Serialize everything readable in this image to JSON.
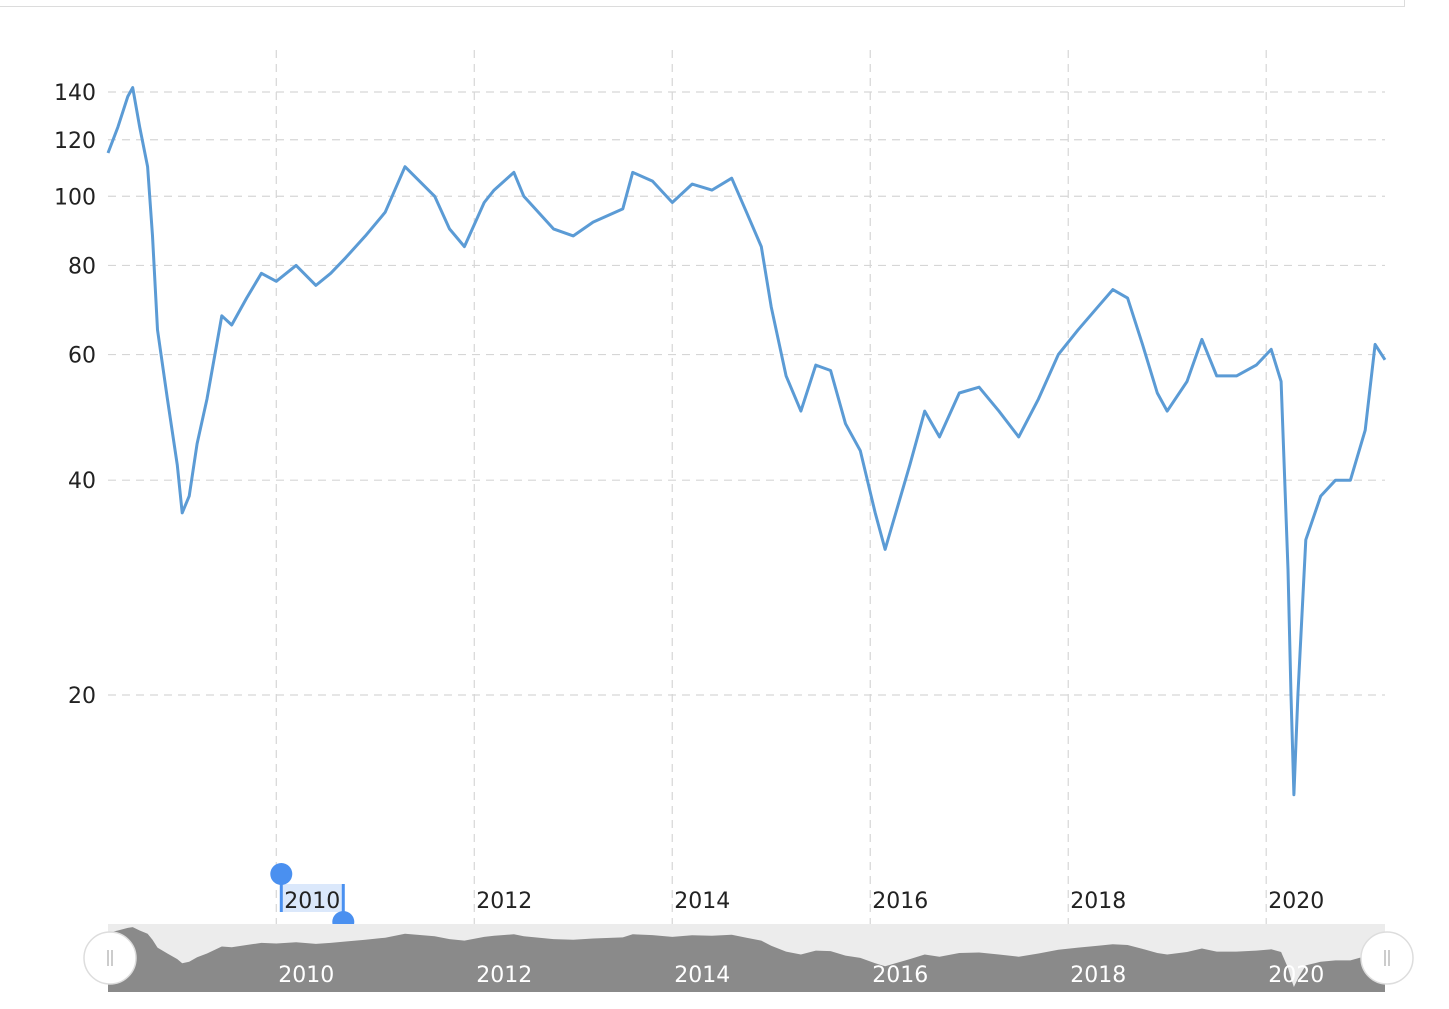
{
  "chart_data": {
    "type": "line",
    "title": "",
    "xlabel": "",
    "ylabel": "",
    "y_scale": "log",
    "ylim": [
      14,
      150
    ],
    "xlim": [
      2008.3,
      2021.2
    ],
    "y_ticks": [
      20,
      40,
      60,
      80,
      100,
      120,
      140
    ],
    "x_ticks": [
      "2010",
      "2012",
      "2014",
      "2016",
      "2018",
      "2020"
    ],
    "grid": true,
    "legend": "none",
    "line_color": "#5b9bd5",
    "selection_label": "2010",
    "series": [
      {
        "name": "",
        "x": [
          2008.3,
          2008.4,
          2008.5,
          2008.55,
          2008.62,
          2008.7,
          2008.75,
          2008.8,
          2008.9,
          2009.0,
          2009.05,
          2009.12,
          2009.2,
          2009.3,
          2009.45,
          2009.55,
          2009.7,
          2009.85,
          2010.0,
          2010.2,
          2010.4,
          2010.55,
          2010.7,
          2010.9,
          2011.1,
          2011.3,
          2011.6,
          2011.75,
          2011.9,
          2012.1,
          2012.2,
          2012.4,
          2012.5,
          2012.8,
          2013.0,
          2013.2,
          2013.5,
          2013.6,
          2013.8,
          2014.0,
          2014.2,
          2014.4,
          2014.6,
          2014.75,
          2014.9,
          2015.0,
          2015.15,
          2015.3,
          2015.45,
          2015.6,
          2015.75,
          2015.9,
          2016.05,
          2016.15,
          2016.4,
          2016.55,
          2016.7,
          2016.9,
          2017.1,
          2017.3,
          2017.5,
          2017.7,
          2017.9,
          2018.1,
          2018.3,
          2018.45,
          2018.6,
          2018.75,
          2018.9,
          2019.0,
          2019.2,
          2019.35,
          2019.5,
          2019.7,
          2019.9,
          2020.05,
          2020.15,
          2020.22,
          2020.25,
          2020.28,
          2020.32,
          2020.4,
          2020.55,
          2020.7,
          2020.85,
          2021.0,
          2021.1,
          2021.2
        ],
        "values": [
          115,
          125,
          138,
          142,
          125,
          110,
          88,
          65,
          52,
          42,
          36,
          38,
          45,
          52,
          68,
          66,
          72,
          78,
          76,
          80,
          75,
          78,
          82,
          88,
          95,
          110,
          100,
          90,
          85,
          98,
          102,
          108,
          100,
          90,
          88,
          92,
          96,
          108,
          105,
          98,
          104,
          102,
          106,
          95,
          85,
          70,
          56,
          50,
          58,
          57,
          48,
          44,
          36,
          32,
          42,
          50,
          46,
          53,
          54,
          50,
          46,
          52,
          60,
          65,
          70,
          74,
          72,
          62,
          53,
          50,
          55,
          63,
          56,
          56,
          58,
          61,
          55,
          30,
          20,
          14.5,
          20,
          33,
          38,
          40,
          40,
          47,
          62,
          59
        ]
      }
    ]
  }
}
